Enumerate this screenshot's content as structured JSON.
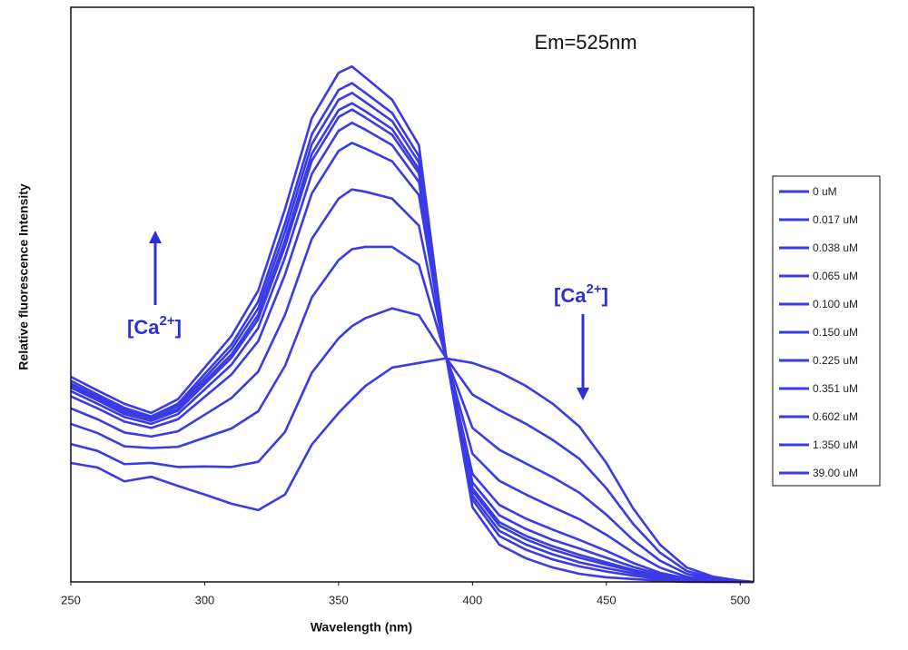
{
  "chart_data": {
    "type": "line",
    "title": "Em=525nm",
    "x_label": "Wavelength (nm)",
    "y_label": "Relative fluorescence Intensity",
    "annotations": [
      {
        "text": "[Ca",
        "superscript": "2+",
        "suffix": "]"
      },
      {
        "text": "[Ca",
        "superscript": "2+",
        "suffix": "]"
      }
    ],
    "xlim": [
      250,
      505
    ],
    "ylim": [
      0,
      100
    ],
    "xticks": [
      250,
      300,
      350,
      400,
      450,
      500
    ],
    "grid": false,
    "legend": "right",
    "x": [
      250,
      260,
      270,
      280,
      290,
      300,
      310,
      320,
      330,
      340,
      350,
      355,
      360,
      370,
      380,
      390,
      400,
      410,
      420,
      430,
      440,
      450,
      460,
      470,
      480,
      490,
      500,
      505
    ],
    "series": [
      {
        "name": "0 uM",
        "color": "#3a3ae6",
        "values": [
          20.7,
          19.9,
          17.5,
          18.3,
          16.7,
          15.2,
          13.6,
          12.5,
          15.2,
          23.9,
          29.4,
          31.8,
          34.1,
          37.3,
          38.1,
          38.9,
          38.1,
          36.5,
          34.1,
          31,
          27,
          20.7,
          12.8,
          6.5,
          2.5,
          0.9,
          0.2,
          0
        ]
      },
      {
        "name": "0.017 uM",
        "color": "#3a3ae6",
        "values": [
          24.0,
          22.8,
          20.5,
          20.7,
          20.0,
          20.1,
          20.0,
          20.9,
          26.1,
          36.4,
          42.4,
          44.5,
          45.9,
          47.6,
          46.4,
          39.1,
          32.6,
          29.9,
          27.5,
          24.7,
          21.4,
          16.3,
          10.1,
          5.1,
          1.9,
          0.7,
          0.2,
          0
        ]
      },
      {
        "name": "0.038 uM",
        "color": "#3a3ae6",
        "values": [
          27.5,
          25.9,
          23.6,
          23.3,
          23.5,
          25.1,
          26.7,
          29.7,
          37.6,
          49.5,
          56.0,
          57.9,
          58.3,
          58.3,
          55.2,
          39.3,
          26.8,
          23.0,
          20.6,
          18.2,
          15.5,
          11.7,
          7.3,
          3.7,
          1.4,
          0.5,
          0.1,
          0
        ]
      },
      {
        "name": "0.065 uM",
        "color": "#3a3ae6",
        "values": [
          30.2,
          28.3,
          26.0,
          25.3,
          26.2,
          29.1,
          32.0,
          36.6,
          46.5,
          59.7,
          66.7,
          68.3,
          67.9,
          66.7,
          62.0,
          39.4,
          22.3,
          17.6,
          15.2,
          13.0,
          10.9,
          8.2,
          5.1,
          2.5,
          0.9,
          0.3,
          0.1,
          0
        ]
      },
      {
        "name": "0.100 uM",
        "color": "#3a3ae6",
        "values": [
          32.3,
          30.2,
          27.9,
          26.8,
          28.3,
          32.2,
          36.1,
          41.9,
          53.5,
          67.6,
          75.0,
          76.4,
          75.4,
          73.2,
          67.3,
          39.5,
          18.8,
          13.4,
          11.0,
          9.1,
          7.3,
          5.4,
          3.3,
          1.6,
          0.6,
          0.2,
          0,
          0
        ]
      },
      {
        "name": "0.150 uM",
        "color": "#3a3ae6",
        "values": [
          33.2,
          31.0,
          28.7,
          27.5,
          29.2,
          33.5,
          37.8,
          44.2,
          56.5,
          71.0,
          78.5,
          79.9,
          78.7,
          76.0,
          69.6,
          39.6,
          17.3,
          11.6,
          9.2,
          7.3,
          5.8,
          4.2,
          2.6,
          1.3,
          0.4,
          0.2,
          0,
          0
        ]
      },
      {
        "name": "0.225 uM",
        "color": "#3a3ae6",
        "values": [
          33.8,
          31.6,
          29.2,
          28.0,
          29.8,
          34.4,
          39.0,
          45.7,
          58.4,
          73.3,
          80.9,
          82.2,
          80.8,
          77.8,
          71.1,
          39.6,
          16.3,
          10.4,
          8.0,
          6.2,
          4.7,
          3.4,
          2.1,
          1.0,
          0.3,
          0.1,
          0,
          0
        ]
      },
      {
        "name": "0.351 uM",
        "color": "#3a3ae6",
        "values": [
          34.1,
          31.8,
          29.5,
          28.2,
          30.1,
          34.9,
          39.6,
          46.5,
          59.4,
          74.5,
          82.1,
          83.3,
          81.9,
          78.8,
          71.8,
          39.6,
          15.8,
          9.8,
          7.4,
          5.6,
          4.2,
          3.0,
          1.9,
          0.9,
          0.3,
          0.1,
          0,
          0
        ]
      },
      {
        "name": "0.602 uM",
        "color": "#3a3ae6",
        "values": [
          34.5,
          32.2,
          29.9,
          28.5,
          30.6,
          35.5,
          40.5,
          47.6,
          60.9,
          76.2,
          83.9,
          85.1,
          83.5,
          80.2,
          73.0,
          39.6,
          15.0,
          8.9,
          6.5,
          4.8,
          3.4,
          2.4,
          1.5,
          0.7,
          0.2,
          0.1,
          0,
          0
        ]
      },
      {
        "name": "1.350 uM",
        "color": "#3a3ae6",
        "values": [
          35.0,
          32.6,
          30.3,
          28.8,
          31.0,
          36.2,
          41.3,
          48.8,
          62.4,
          77.9,
          85.6,
          86.8,
          85.1,
          81.6,
          74.1,
          39.7,
          14.3,
          8.0,
          5.6,
          3.9,
          2.7,
          1.8,
          1.1,
          0.5,
          0.1,
          0,
          0,
          0
        ]
      },
      {
        "name": "39.00 uM",
        "color": "#3a3ae6",
        "values": [
          35.7,
          33.3,
          31,
          29.4,
          31.8,
          37.3,
          42.8,
          50.7,
          64.9,
          80.7,
          88.6,
          89.7,
          87.8,
          83.9,
          76,
          39.7,
          13,
          6.5,
          4.1,
          2.5,
          1.4,
          0.8,
          0.5,
          0.2,
          0,
          0,
          0,
          0
        ]
      }
    ]
  }
}
